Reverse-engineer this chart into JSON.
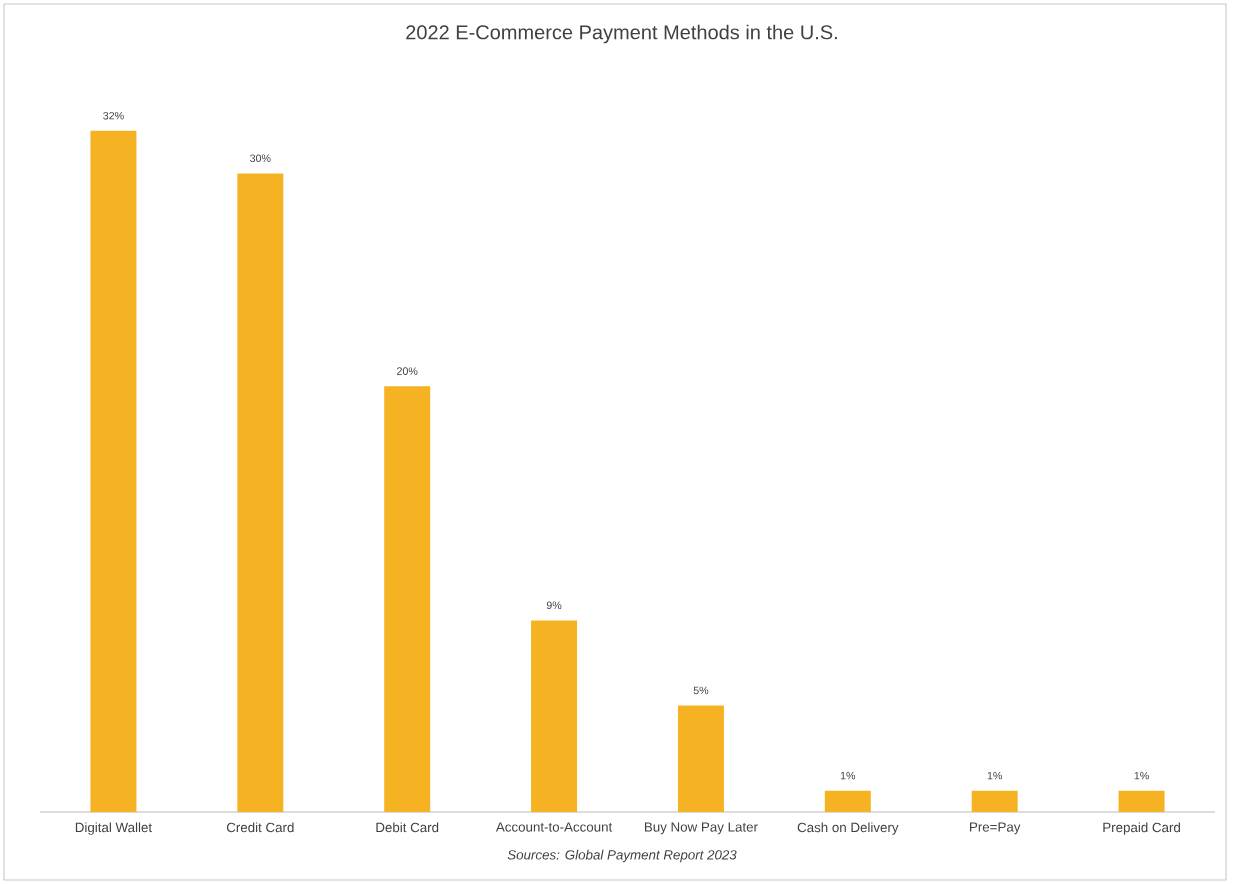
{
  "chart_data": {
    "type": "bar",
    "title": "2022 E-Commerce Payment Methods in the U.S.",
    "categories": [
      "Digital Wallet",
      "Credit Card",
      "Debit Card",
      "Account-to-Account",
      "Buy Now Pay Later",
      "Cash on Delivery",
      "Pre=Pay",
      "Prepaid Card"
    ],
    "values": [
      32,
      30,
      20,
      9,
      5,
      1,
      1,
      1
    ],
    "value_labels": [
      "32%",
      "30%",
      "20%",
      "9%",
      "5%",
      "1%",
      "1%",
      "1%"
    ],
    "color": "#f5b324",
    "annotations": [
      "Sources: Global Payment Report 2023"
    ]
  }
}
